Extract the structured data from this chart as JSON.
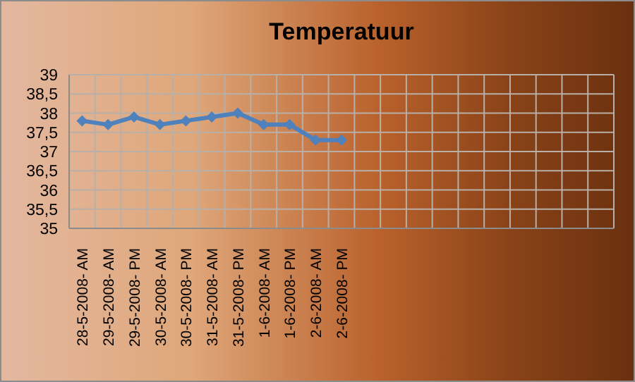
{
  "chart_data": {
    "type": "line",
    "title": "Temperatuur",
    "categories": [
      "28-5-2008- AM",
      "29-5-2008- AM",
      "29-5-2008- PM",
      "30-5-2008- AM",
      "30-5-2008- PM",
      "31-5-2008- AM",
      "31-5-2008- PM",
      "1-6-2008- AM",
      "1-6-2008- PM",
      "2-6-2008- AM",
      "2-6-2008- PM",
      null,
      null,
      null,
      null,
      null,
      null,
      null,
      null,
      null,
      null
    ],
    "series": [
      {
        "color": "#4f81bd",
        "values": [
          37.8,
          37.7,
          37.9,
          37.7,
          37.8,
          37.9,
          38.0,
          37.7,
          37.7,
          37.3,
          37.3,
          null,
          null,
          null,
          null,
          null,
          null,
          null,
          null,
          null,
          null
        ]
      }
    ],
    "ylim": [
      35,
      39
    ],
    "yticks": [
      35,
      {
        "value": 35.5,
        "label": "35,5"
      },
      36,
      {
        "value": 36.5,
        "label": "36,5"
      },
      37,
      {
        "value": 37.5,
        "label": "37,5"
      },
      38,
      {
        "value": 38.5,
        "label": "38,5"
      },
      39
    ],
    "grid": true,
    "marker": "diamond",
    "line_style": "solid"
  }
}
